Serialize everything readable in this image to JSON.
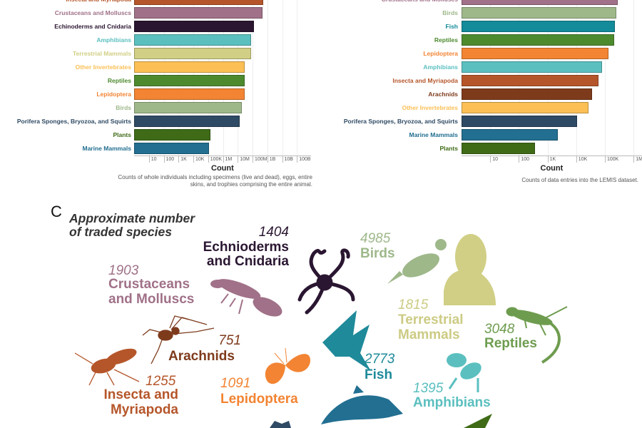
{
  "chart_data": [
    {
      "type": "bar",
      "orientation": "horizontal",
      "panel": "A",
      "xscale": "log10",
      "xlabel": "Count",
      "caption": [
        "Counts of whole individuals including specimens (live and dead), eggs, entire",
        "skins, and trophies comprising the entire animal."
      ],
      "xticks": [
        "10",
        "100",
        "1K",
        "10K",
        "100K",
        "1M",
        "10M",
        "100M",
        "1B",
        "10B",
        "100B"
      ],
      "xlim": [
        1,
        300000000000
      ],
      "categories": [
        "Insecta and Myriapoda",
        "Crustaceans and Molluscs",
        "Echinoderms and Cnidaria",
        "Amphibians",
        "Terrestrial Mammals",
        "Other Invertebrates",
        "Reptiles",
        "Lepidoptera",
        "Birds",
        "Porifera Sponges, Bryozoa, and Squirts",
        "Plants",
        "Marine Mammals"
      ],
      "values": [
        550000000,
        450000000,
        120000000,
        80000000,
        80000000,
        30000000,
        30000000,
        30000000,
        18000000,
        13000000,
        150000,
        120000
      ],
      "colors": [
        "#b5562a",
        "#a07188",
        "#2a1631",
        "#5bbfbf",
        "#d0cf85",
        "#fbbf55",
        "#4d8a2e",
        "#f28433",
        "#9eb88a",
        "#2f4a64",
        "#3f6b17",
        "#226f91"
      ]
    },
    {
      "type": "bar",
      "orientation": "horizontal",
      "panel": "B",
      "xscale": "log10",
      "xlabel": "Count",
      "caption": [
        "Counts of data entries into the LEMIS dataset."
      ],
      "xticks": [
        "10",
        "100",
        "1K",
        "10K",
        "100K",
        "1M"
      ],
      "xlim": [
        1,
        1000000
      ],
      "categories": [
        "Crustaceans and Molluscs",
        "Birds",
        "Fish",
        "Reptiles",
        "Lepidoptera",
        "Amphibians",
        "Insecta and Myriapoda",
        "Arachnids",
        "Other Invertebrates",
        "Porifera Sponges, Bryozoa, and Squirts",
        "Marine Mammals",
        "Plants"
      ],
      "values": [
        280000,
        250000,
        220000,
        210000,
        130000,
        80000,
        60000,
        35000,
        27000,
        11000,
        2300,
        360
      ],
      "colors": [
        "#a07188",
        "#9eb88a",
        "#138b9a",
        "#4d8a2e",
        "#f28433",
        "#5bbfbf",
        "#b5562a",
        "#7e3b1c",
        "#fbbf55",
        "#2f4a64",
        "#226f91",
        "#3f6b17"
      ]
    }
  ],
  "panel_c": {
    "letter": "C",
    "title": [
      "Approximate number",
      "of traded species"
    ],
    "groups": [
      {
        "key": "echinoderms",
        "count": "1404",
        "name": [
          "Echnioderms",
          "and Cnidaria"
        ],
        "color": "#2a1631"
      },
      {
        "key": "crustaceans",
        "count": "1903",
        "name": [
          "Crustaceans",
          "and Molluscs"
        ],
        "color": "#a07188"
      },
      {
        "key": "arachnids",
        "count": "751",
        "name": [
          "Arachnids"
        ],
        "color": "#7e3b1c"
      },
      {
        "key": "insecta",
        "count": "1255",
        "name": [
          "Insecta and",
          "Myriapoda"
        ],
        "color": "#b5562a"
      },
      {
        "key": "lepidoptera",
        "count": "1091",
        "name": [
          "Lepidoptera"
        ],
        "color": "#f28433"
      },
      {
        "key": "birds",
        "count": "4985",
        "name": [
          "Birds"
        ],
        "color": "#9eb88a"
      },
      {
        "key": "terrestrial",
        "count": "1815",
        "name": [
          "Terrestrial",
          "Mammals"
        ],
        "color": "#cccb84"
      },
      {
        "key": "reptiles",
        "count": "3048",
        "name": [
          "Reptiles"
        ],
        "color": "#6e9c4f"
      },
      {
        "key": "fish",
        "count": "2773",
        "name": [
          "Fish"
        ],
        "color": "#1f8a9a"
      },
      {
        "key": "amphibians",
        "count": "1395",
        "name": [
          "Amphibians"
        ],
        "color": "#5bbfbf"
      }
    ]
  }
}
